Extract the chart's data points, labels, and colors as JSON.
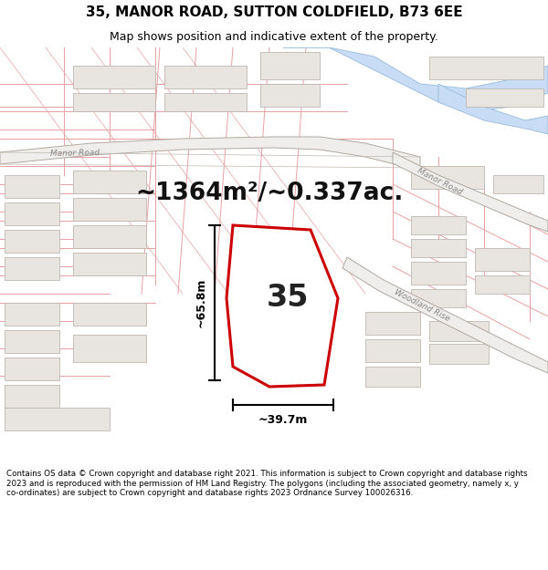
{
  "title_line1": "35, MANOR ROAD, SUTTON COLDFIELD, B73 6EE",
  "title_line2": "Map shows position and indicative extent of the property.",
  "area_text": "~1364m²/~0.337ac.",
  "label_35": "35",
  "dim_width": "~39.7m",
  "dim_height": "~65.8m",
  "footer": "Contains OS data © Crown copyright and database right 2021. This information is subject to Crown copyright and database rights 2023 and is reproduced with the permission of HM Land Registry. The polygons (including the associated geometry, namely x, y co-ordinates) are subject to Crown copyright and database rights 2023 Ordnance Survey 100026316.",
  "map_bg": "#f7f5f2",
  "road_fill": "#f7c8c8",
  "road_edge": "#e08080",
  "bld_fill": "#e8e4e0",
  "bld_edge": "#c8a0a0",
  "bld_edge2": "#c0b8b0",
  "water_fill": "#c8ddf5",
  "water_edge": "#a0c0e0",
  "prop_edge": "#cc0000",
  "dim_color": "#000000",
  "text_road": "#888888",
  "title_fs": 11,
  "subtitle_fs": 9,
  "area_fs": 19,
  "label_fs": 24,
  "dim_fs": 9,
  "footer_fs": 6.3
}
